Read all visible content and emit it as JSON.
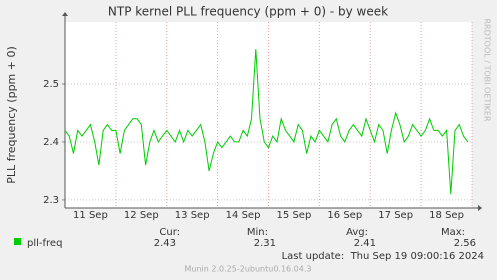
{
  "chart_data": {
    "type": "line",
    "title": "NTP kernel PLL frequency (ppm + 0) - by week",
    "y_label": "PLL frequency (ppm + 0)",
    "side_label": "RRDTOOL / TOBI OETIKER",
    "xlim": [
      0,
      192
    ],
    "xticks": [
      {
        "value": 12,
        "label": "11 Sep"
      },
      {
        "value": 36,
        "label": "12 Sep"
      },
      {
        "value": 60,
        "label": "13 Sep"
      },
      {
        "value": 84,
        "label": "14 Sep"
      },
      {
        "value": 108,
        "label": "15 Sep"
      },
      {
        "value": 132,
        "label": "16 Sep"
      },
      {
        "value": 156,
        "label": "17 Sep"
      },
      {
        "value": 180,
        "label": "18 Sep"
      }
    ],
    "x_gridlines": [
      24,
      48,
      72,
      96,
      120,
      144,
      168,
      192
    ],
    "ylim": [
      2.286,
      2.607
    ],
    "yticks": [
      2.3,
      2.4,
      2.5
    ],
    "grid": true,
    "x": [
      0,
      2,
      4,
      6,
      8,
      10,
      12,
      14,
      16,
      18,
      20,
      22,
      24,
      26,
      28,
      30,
      32,
      34,
      36,
      38,
      40,
      42,
      44,
      46,
      48,
      50,
      52,
      54,
      56,
      58,
      60,
      62,
      64,
      66,
      68,
      70,
      72,
      74,
      76,
      78,
      80,
      82,
      84,
      86,
      88,
      90,
      92,
      94,
      96,
      98,
      100,
      102,
      104,
      106,
      108,
      110,
      112,
      114,
      116,
      118,
      120,
      122,
      124,
      126,
      128,
      130,
      132,
      134,
      136,
      138,
      140,
      142,
      144,
      146,
      148,
      150,
      152,
      154,
      156,
      158,
      160,
      162,
      164,
      166,
      168,
      170,
      172,
      174,
      176,
      178,
      180,
      182,
      184,
      186,
      188,
      190
    ],
    "series": [
      {
        "name": "pll-freq",
        "color": "#00cc00",
        "values": [
          2.42,
          2.41,
          2.38,
          2.42,
          2.41,
          2.42,
          2.43,
          2.4,
          2.36,
          2.42,
          2.43,
          2.42,
          2.42,
          2.38,
          2.42,
          2.43,
          2.44,
          2.44,
          2.43,
          2.36,
          2.4,
          2.42,
          2.4,
          2.41,
          2.42,
          2.41,
          2.4,
          2.42,
          2.4,
          2.42,
          2.41,
          2.42,
          2.43,
          2.4,
          2.35,
          2.38,
          2.4,
          2.39,
          2.4,
          2.41,
          2.4,
          2.4,
          2.42,
          2.41,
          2.44,
          2.56,
          2.44,
          2.4,
          2.39,
          2.41,
          2.4,
          2.44,
          2.42,
          2.41,
          2.4,
          2.43,
          2.42,
          2.38,
          2.41,
          2.4,
          2.42,
          2.41,
          2.4,
          2.43,
          2.44,
          2.41,
          2.4,
          2.42,
          2.43,
          2.42,
          2.41,
          2.44,
          2.42,
          2.4,
          2.43,
          2.42,
          2.38,
          2.42,
          2.45,
          2.43,
          2.4,
          2.41,
          2.43,
          2.42,
          2.41,
          2.42,
          2.44,
          2.42,
          2.42,
          2.41,
          2.42,
          2.31,
          2.42,
          2.43,
          2.41,
          2.4
        ]
      }
    ],
    "legend": {
      "headers": [
        "Cur:",
        "Min:",
        "Avg:",
        "Max:"
      ],
      "values": [
        2.43,
        2.31,
        2.41,
        2.56
      ]
    },
    "last_update": "Last update:  Thu Sep 19 09:00:16 2024",
    "footer": "Munin 2.0.25-2ubuntu0.16.04.3"
  }
}
